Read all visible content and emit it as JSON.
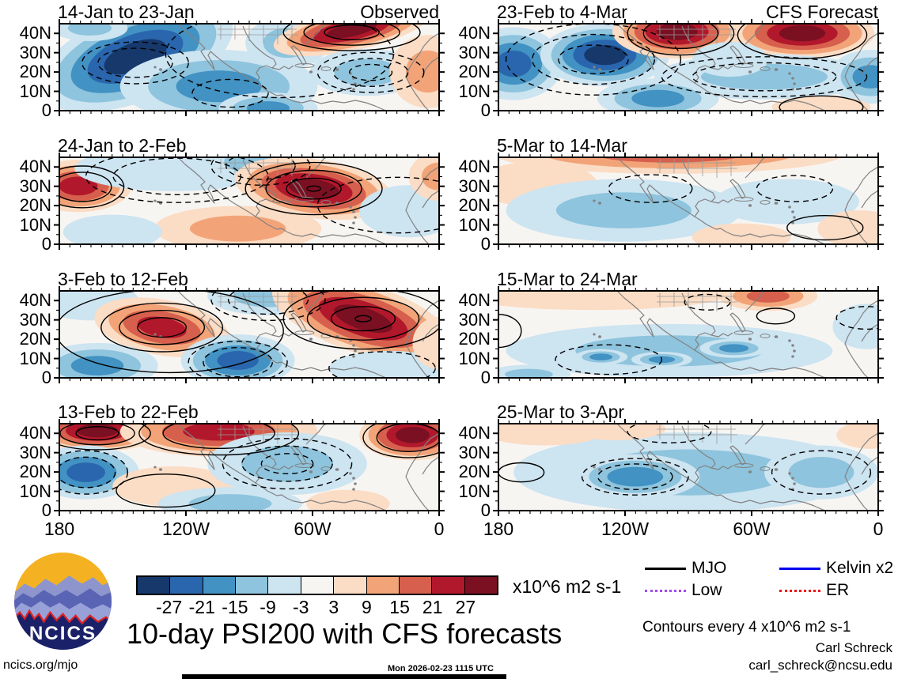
{
  "figure": {
    "main_title": "10-day PSI200 with CFS forecasts",
    "website": "ncics.org/mjo",
    "generated": "Mon 2026-02-23 1115 UTC",
    "credit_name": "Carl Schreck",
    "credit_email": "carl_schreck@ncsu.edu",
    "contour_note": "Contours every 4 x10^6 m2 s-1",
    "units_label": "x10^6 m2 s-1",
    "logo_text": "NCICS"
  },
  "axes": {
    "x_ticks": [
      "180",
      "120W",
      "60W",
      "0"
    ],
    "y_ticks": [
      "40N",
      "30N",
      "20N",
      "10N",
      "0"
    ]
  },
  "colorbar": {
    "levels": [
      -27,
      -21,
      -15,
      -9,
      -3,
      3,
      9,
      15,
      21,
      27
    ],
    "colors": [
      "#16386b",
      "#2a66ae",
      "#4292c3",
      "#8ec4dd",
      "#cde4f1",
      "#f7f5f2",
      "#fbdcc4",
      "#f2a478",
      "#d6604d",
      "#b2182b",
      "#7a1022"
    ]
  },
  "legend": {
    "items": [
      {
        "label": "MJO",
        "color": "#000000",
        "style": "solid"
      },
      {
        "label": "Kelvin x2",
        "color": "#0000ee",
        "style": "solid"
      },
      {
        "label": "Low",
        "color": "#a24bf0",
        "style": "dotted"
      },
      {
        "label": "ER",
        "color": "#ee1111",
        "style": "dotted"
      }
    ]
  },
  "chart_data": {
    "type": "heatmap",
    "subtype": "filled-contour-anomaly-maps",
    "variable": "PSI200 streamfunction anomaly",
    "lon_range": [
      "180",
      "0"
    ],
    "lat_range": [
      "0",
      "45N"
    ],
    "columns": [
      "Observed",
      "CFS Forecast"
    ],
    "blob_format": "[cx_frac, cy_frac, rx_frac, ry_frac, peak_anomaly_x10^6_m2_s-1, rotation_deg]",
    "contour_format": "[cx_frac, cy_frac, rx_frac, ry_frac, n_rings, line_style]",
    "panels": [
      {
        "title": "14-Jan to 23-Jan",
        "heading": "Observed",
        "column": "Observed",
        "blobs": [
          [
            0.2,
            0.38,
            0.27,
            0.52,
            -30,
            -20
          ],
          [
            0.42,
            0.72,
            0.26,
            0.42,
            -15,
            0
          ],
          [
            0.6,
            0.22,
            0.11,
            0.3,
            -12,
            0
          ],
          [
            0.77,
            0.07,
            0.21,
            0.24,
            27,
            -12
          ],
          [
            0.81,
            0.56,
            0.15,
            0.27,
            -9,
            0
          ],
          [
            0.97,
            0.55,
            0.1,
            0.42,
            9,
            0
          ],
          [
            0.55,
            0.97,
            0.13,
            0.18,
            -15,
            0
          ],
          [
            0.08,
            0.05,
            0.1,
            0.15,
            -9,
            0
          ]
        ],
        "contours": [
          [
            0.2,
            0.45,
            0.14,
            0.24,
            2,
            "dashed"
          ],
          [
            0.45,
            0.8,
            0.1,
            0.16,
            1,
            "dashed"
          ],
          [
            0.77,
            0.1,
            0.18,
            0.21,
            3,
            "solid"
          ],
          [
            0.82,
            0.56,
            0.14,
            0.23,
            3,
            "dashed"
          ],
          [
            0.58,
            0.35,
            0.3,
            0.5,
            1,
            "dashed"
          ]
        ]
      },
      {
        "title": "24-Jan to 2-Feb",
        "column": "Observed",
        "blobs": [
          [
            0.05,
            0.33,
            0.14,
            0.3,
            21,
            0
          ],
          [
            0.3,
            0.13,
            0.26,
            0.26,
            -6,
            0
          ],
          [
            0.52,
            0.05,
            0.15,
            0.24,
            -12,
            0
          ],
          [
            0.67,
            0.36,
            0.21,
            0.34,
            30,
            8
          ],
          [
            0.47,
            0.82,
            0.22,
            0.26,
            9,
            0
          ],
          [
            0.92,
            0.62,
            0.13,
            0.3,
            -6,
            0
          ],
          [
            1.0,
            0.22,
            0.08,
            0.28,
            9,
            0
          ],
          [
            0.14,
            0.86,
            0.13,
            0.2,
            -6,
            0
          ]
        ],
        "contours": [
          [
            0.06,
            0.34,
            0.11,
            0.24,
            2,
            "solid"
          ],
          [
            0.31,
            0.22,
            0.24,
            0.3,
            2,
            "dashed"
          ],
          [
            0.53,
            0.1,
            0.13,
            0.22,
            2,
            "dashed"
          ],
          [
            0.67,
            0.36,
            0.18,
            0.3,
            4,
            "solid"
          ],
          [
            0.89,
            0.55,
            0.21,
            0.32,
            1,
            "dashed"
          ]
        ]
      },
      {
        "title": "3-Feb to 12-Feb",
        "column": "Observed",
        "blobs": [
          [
            0.08,
            0.12,
            0.13,
            0.22,
            -6,
            0
          ],
          [
            0.27,
            0.42,
            0.18,
            0.32,
            21,
            10
          ],
          [
            0.1,
            0.86,
            0.16,
            0.26,
            -15,
            0
          ],
          [
            0.47,
            0.8,
            0.15,
            0.3,
            -21,
            0
          ],
          [
            0.55,
            0.06,
            0.16,
            0.22,
            -9,
            0
          ],
          [
            0.8,
            0.32,
            0.25,
            0.4,
            33,
            18
          ],
          [
            0.87,
            0.89,
            0.16,
            0.2,
            -6,
            0
          ],
          [
            1.0,
            0.6,
            0.07,
            0.3,
            6,
            0
          ]
        ],
        "contours": [
          [
            0.27,
            0.42,
            0.16,
            0.28,
            3,
            "solid"
          ],
          [
            0.29,
            0.46,
            0.3,
            0.48,
            1,
            "solid"
          ],
          [
            0.55,
            0.1,
            0.15,
            0.24,
            2,
            "dashed"
          ],
          [
            0.47,
            0.82,
            0.13,
            0.24,
            2,
            "dashed"
          ],
          [
            0.8,
            0.32,
            0.21,
            0.35,
            5,
            "solid"
          ],
          [
            0.85,
            0.89,
            0.14,
            0.19,
            1,
            "dashed"
          ]
        ]
      },
      {
        "title": "13-Feb to 22-Feb",
        "column": "Observed",
        "blobs": [
          [
            0.1,
            0.08,
            0.17,
            0.24,
            30,
            0
          ],
          [
            0.07,
            0.56,
            0.14,
            0.31,
            -24,
            0
          ],
          [
            0.42,
            0.09,
            0.26,
            0.29,
            21,
            0
          ],
          [
            0.3,
            0.72,
            0.16,
            0.23,
            6,
            0
          ],
          [
            0.6,
            0.46,
            0.21,
            0.36,
            -9,
            0
          ],
          [
            0.93,
            0.13,
            0.14,
            0.29,
            33,
            0
          ],
          [
            0.45,
            0.92,
            0.19,
            0.19,
            -9,
            0
          ],
          [
            0.76,
            0.92,
            0.11,
            0.16,
            6,
            0
          ]
        ],
        "contours": [
          [
            0.1,
            0.11,
            0.14,
            0.19,
            3,
            "solid"
          ],
          [
            0.07,
            0.56,
            0.11,
            0.25,
            2,
            "dashed"
          ],
          [
            0.42,
            0.11,
            0.21,
            0.25,
            2,
            "solid"
          ],
          [
            0.6,
            0.46,
            0.17,
            0.29,
            3,
            "dashed"
          ],
          [
            0.92,
            0.16,
            0.12,
            0.23,
            2,
            "solid"
          ],
          [
            0.28,
            0.77,
            0.13,
            0.19,
            1,
            "solid"
          ]
        ]
      },
      {
        "title": "23-Feb to 4-Mar",
        "heading": "CFS Forecast",
        "column": "CFS Forecast",
        "blobs": [
          [
            0.04,
            0.46,
            0.13,
            0.42,
            -21,
            0
          ],
          [
            0.28,
            0.36,
            0.17,
            0.36,
            -27,
            0
          ],
          [
            0.47,
            0.09,
            0.17,
            0.31,
            33,
            0
          ],
          [
            0.8,
            0.11,
            0.19,
            0.29,
            27,
            0
          ],
          [
            0.7,
            0.61,
            0.29,
            0.26,
            -9,
            0
          ],
          [
            0.98,
            0.61,
            0.11,
            0.31,
            -15,
            0
          ],
          [
            0.42,
            0.86,
            0.16,
            0.23,
            -15,
            0
          ],
          [
            0.85,
            0.96,
            0.13,
            0.13,
            6,
            0
          ],
          [
            0.61,
            0.41,
            0.1,
            0.2,
            -6,
            0
          ]
        ],
        "contours": [
          [
            0.25,
            0.41,
            0.23,
            0.41,
            3,
            "dashed"
          ],
          [
            0.48,
            0.11,
            0.14,
            0.25,
            2,
            "solid"
          ],
          [
            0.8,
            0.13,
            0.17,
            0.27,
            1,
            "solid"
          ],
          [
            0.7,
            0.61,
            0.27,
            0.23,
            2,
            "dashed"
          ],
          [
            0.85,
            0.96,
            0.11,
            0.13,
            1,
            "solid"
          ]
        ]
      },
      {
        "title": "5-Mar to 14-Mar",
        "column": "CFS Forecast",
        "blobs": [
          [
            0.45,
            -0.04,
            0.46,
            0.23,
            15,
            0
          ],
          [
            0.1,
            0.31,
            0.16,
            0.26,
            6,
            0
          ],
          [
            0.33,
            0.61,
            0.31,
            0.36,
            -9,
            0
          ],
          [
            0.76,
            0.51,
            0.19,
            0.26,
            -6,
            0
          ],
          [
            0.95,
            0.82,
            0.11,
            0.21,
            6,
            0
          ],
          [
            0.64,
            0.92,
            0.13,
            0.16,
            6,
            0
          ]
        ],
        "contours": [
          [
            0.4,
            0.36,
            0.11,
            0.16,
            1,
            "dashed"
          ],
          [
            0.78,
            0.36,
            0.1,
            0.15,
            1,
            "dashed"
          ],
          [
            0.86,
            0.81,
            0.1,
            0.14,
            1,
            "solid"
          ]
        ]
      },
      {
        "title": "15-Mar to 24-Mar",
        "column": "CFS Forecast",
        "blobs": [
          [
            0.25,
            0.03,
            0.36,
            0.19,
            6,
            0
          ],
          [
            0.71,
            0.06,
            0.13,
            0.17,
            15,
            0
          ],
          [
            0.45,
            0.69,
            0.43,
            0.31,
            -12,
            0
          ],
          [
            0.27,
            0.76,
            0.07,
            0.09,
            -18,
            0
          ],
          [
            0.43,
            0.79,
            0.08,
            0.09,
            -18,
            0
          ],
          [
            0.62,
            0.66,
            0.09,
            0.11,
            -18,
            0
          ],
          [
            0.97,
            0.41,
            0.09,
            0.26,
            -6,
            0
          ],
          [
            0.08,
            0.96,
            0.11,
            0.11,
            -9,
            0
          ]
        ],
        "contours": [
          [
            0.29,
            0.79,
            0.14,
            0.17,
            1,
            "dashed"
          ],
          [
            0.55,
            0.13,
            0.06,
            0.09,
            1,
            "dashed"
          ],
          [
            0.73,
            0.29,
            0.05,
            0.09,
            1,
            "solid"
          ],
          [
            0.97,
            0.31,
            0.08,
            0.13,
            1,
            "dashed"
          ],
          [
            0.0,
            0.46,
            0.06,
            0.19,
            1,
            "solid"
          ]
        ]
      },
      {
        "title": "25-Mar to 3-Apr",
        "column": "CFS Forecast",
        "blobs": [
          [
            0.5,
            0.56,
            0.46,
            0.46,
            -9,
            0
          ],
          [
            0.36,
            0.61,
            0.17,
            0.26,
            -18,
            0
          ],
          [
            0.85,
            0.56,
            0.15,
            0.31,
            -9,
            0
          ],
          [
            0.12,
            0.09,
            0.16,
            0.16,
            6,
            0
          ],
          [
            0.98,
            0.13,
            0.09,
            0.16,
            6,
            0
          ],
          [
            0.31,
            0.06,
            0.13,
            0.13,
            6,
            0
          ]
        ],
        "contours": [
          [
            0.36,
            0.61,
            0.14,
            0.21,
            2,
            "dashed"
          ],
          [
            0.85,
            0.56,
            0.13,
            0.25,
            1,
            "dashed"
          ],
          [
            0.45,
            0.09,
            0.11,
            0.13,
            1,
            "dashed"
          ],
          [
            0.06,
            0.56,
            0.06,
            0.11,
            1,
            "solid"
          ]
        ]
      }
    ]
  }
}
